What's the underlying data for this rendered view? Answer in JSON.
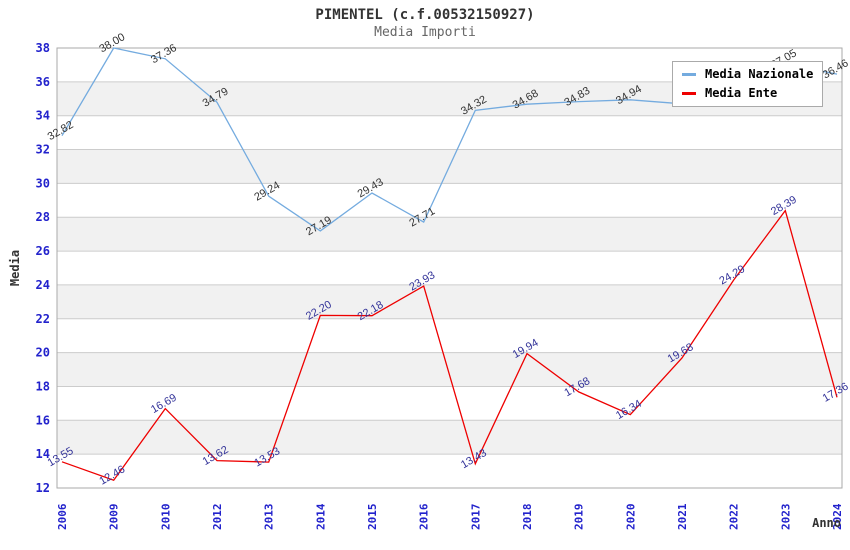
{
  "chart_data": {
    "type": "line",
    "title": "PIMENTEL (c.f.00532150927)",
    "subtitle": "Media Importi",
    "xlabel": "Anno",
    "ylabel": "Media",
    "categories": [
      "2006",
      "2009",
      "2010",
      "2012",
      "2013",
      "2014",
      "2015",
      "2016",
      "2017",
      "2018",
      "2019",
      "2020",
      "2021",
      "2022",
      "2023",
      "2024"
    ],
    "ylim": [
      12,
      38
    ],
    "ytick_step": 2,
    "grid": "alternating-horizontal-bands",
    "legend_position": "top-right-inside",
    "series": [
      {
        "name": "Media Nazionale",
        "color": "#74abdf",
        "label_color": "#333333",
        "values": [
          32.82,
          38.0,
          37.36,
          34.79,
          29.24,
          27.19,
          29.43,
          27.71,
          34.32,
          34.68,
          34.83,
          34.94,
          34.7,
          35.0,
          37.05,
          36.46
        ],
        "labels": [
          "32.82",
          "38.00",
          "37.36",
          "34.79",
          "29.24",
          "27.19",
          "29.43",
          "27.71",
          "34.32",
          "34.68",
          "34.83",
          "34.94",
          "",
          "",
          "37.05",
          "36.46"
        ]
      },
      {
        "name": "Media Ente",
        "color": "#ee0000",
        "label_color": "#333399",
        "values": [
          13.55,
          12.46,
          16.69,
          13.62,
          13.53,
          22.2,
          22.18,
          23.93,
          13.43,
          19.94,
          17.68,
          16.34,
          19.68,
          24.29,
          28.39,
          17.36
        ],
        "labels": [
          "13.55",
          "12.46",
          "16.69",
          "13.62",
          "13.53",
          "22.20",
          "22.18",
          "23.93",
          "13.43",
          "19.94",
          "17.68",
          "16.34",
          "19.68",
          "24.29",
          "28.39",
          "17.36"
        ]
      }
    ],
    "style": {
      "background": "#ffffff",
      "band_fill": "#f1f1f1",
      "gridline_color": "#cccccc",
      "plot_border_color": "#aaaaaa",
      "tick_color": "#2222cc",
      "title_color": "#333333",
      "subtitle_color": "#666666",
      "legend_border_color": "#aaaaaa",
      "legend_text_color": "#000000"
    }
  }
}
